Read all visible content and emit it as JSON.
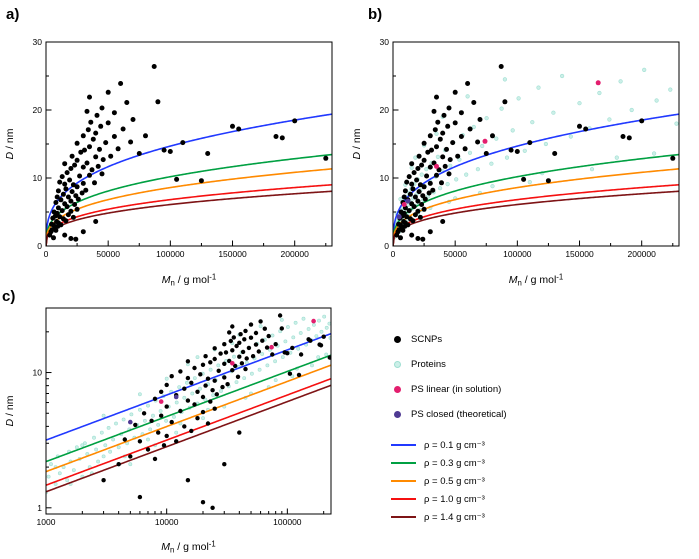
{
  "panels": {
    "a": {
      "label": "a)"
    },
    "b": {
      "label": "b)"
    },
    "c": {
      "label": "c)"
    }
  },
  "legend": {
    "point_items": [
      {
        "label": "SCNPs",
        "color": "#000000"
      },
      {
        "label": "Proteins",
        "color": "#ccefe8",
        "stroke": "#9fdfd2"
      },
      {
        "label": "PS  linear (in solution)",
        "color": "#e31e6e"
      },
      {
        "label": "PS closed (theoretical)",
        "color": "#4f3a93"
      }
    ]
  },
  "curve_constant": 0.0031723,
  "curve_formula": "D[nm] = (6*Mn/(pi*rho*NA))^(1/3), Mn in g/mol, rho in g/cm3",
  "rho_lines": [
    {
      "rho": 0.1,
      "color": "#2139ff",
      "label": "ρ = 0.1 g cm⁻³"
    },
    {
      "rho": 0.3,
      "color": "#00a042",
      "label": "ρ = 0.3 g cm⁻³"
    },
    {
      "rho": 0.5,
      "color": "#ff8a00",
      "label": "ρ = 0.5 g cm⁻³"
    },
    {
      "rho": 1.0,
      "color": "#f51010",
      "label": "ρ = 1.0 g cm⁻³"
    },
    {
      "rho": 1.4,
      "color": "#7e1416",
      "label": "ρ = 1.4 g cm⁻³"
    }
  ],
  "datasets": {
    "scnps": [
      [
        3000,
        1.6
      ],
      [
        4000,
        2.1
      ],
      [
        4500,
        3.2
      ],
      [
        5000,
        2.4
      ],
      [
        5500,
        4.1
      ],
      [
        6000,
        1.2
      ],
      [
        6000,
        3.1
      ],
      [
        6500,
        5.0
      ],
      [
        7000,
        2.7
      ],
      [
        7500,
        4.4
      ],
      [
        8000,
        2.3
      ],
      [
        8000,
        6.4
      ],
      [
        8500,
        3.6
      ],
      [
        9000,
        4.8
      ],
      [
        9000,
        7.2
      ],
      [
        9500,
        2.9
      ],
      [
        10000,
        3.4
      ],
      [
        10000,
        5.6
      ],
      [
        10000,
        8.1
      ],
      [
        11000,
        4.3
      ],
      [
        11000,
        9.4
      ],
      [
        12000,
        3.1
      ],
      [
        12000,
        6.8
      ],
      [
        13000,
        5.2
      ],
      [
        13000,
        10.2
      ],
      [
        14000,
        4.0
      ],
      [
        14000,
        7.6
      ],
      [
        15000,
        1.6
      ],
      [
        15000,
        6.2
      ],
      [
        15000,
        9.1
      ],
      [
        15000,
        12.1
      ],
      [
        16000,
        3.7
      ],
      [
        16000,
        8.4
      ],
      [
        17000,
        5.8
      ],
      [
        17000,
        10.8
      ],
      [
        18000,
        4.6
      ],
      [
        18000,
        7.2
      ],
      [
        19000,
        9.7
      ],
      [
        20000,
        1.1
      ],
      [
        20000,
        5.1
      ],
      [
        20000,
        6.6
      ],
      [
        20000,
        11.4
      ],
      [
        21000,
        8.0
      ],
      [
        21000,
        13.2
      ],
      [
        22000,
        4.2
      ],
      [
        22000,
        9.0
      ],
      [
        23000,
        6.1
      ],
      [
        23000,
        11.9
      ],
      [
        24000,
        1.0
      ],
      [
        24000,
        7.4
      ],
      [
        25000,
        5.4
      ],
      [
        25000,
        8.7
      ],
      [
        25000,
        12.6
      ],
      [
        25000,
        15.1
      ],
      [
        26000,
        6.9
      ],
      [
        27000,
        10.3
      ],
      [
        28000,
        13.8
      ],
      [
        29000,
        7.8
      ],
      [
        30000,
        2.1
      ],
      [
        30000,
        9.2
      ],
      [
        30000,
        11.6
      ],
      [
        30000,
        16.2
      ],
      [
        31000,
        14.1
      ],
      [
        32000,
        8.2
      ],
      [
        33000,
        12.2
      ],
      [
        33000,
        19.8
      ],
      [
        34000,
        17.1
      ],
      [
        35000,
        10.4
      ],
      [
        35000,
        14.6
      ],
      [
        35000,
        21.9
      ],
      [
        36000,
        18.2
      ],
      [
        37000,
        11.2
      ],
      [
        38000,
        15.7
      ],
      [
        39000,
        9.3
      ],
      [
        40000,
        3.6
      ],
      [
        40000,
        13.1
      ],
      [
        40000,
        16.6
      ],
      [
        41000,
        19.2
      ],
      [
        42000,
        11.7
      ],
      [
        43000,
        14.2
      ],
      [
        44000,
        17.6
      ],
      [
        45000,
        10.6
      ],
      [
        45000,
        20.3
      ],
      [
        46000,
        12.7
      ],
      [
        48000,
        15.2
      ],
      [
        50000,
        18.1
      ],
      [
        50000,
        22.6
      ],
      [
        52000,
        13.2
      ],
      [
        55000,
        16.1
      ],
      [
        55000,
        19.6
      ],
      [
        58000,
        14.3
      ],
      [
        60000,
        23.9
      ],
      [
        62000,
        17.2
      ],
      [
        65000,
        21.1
      ],
      [
        68000,
        15.3
      ],
      [
        70000,
        18.6
      ],
      [
        75000,
        13.6
      ],
      [
        80000,
        16.2
      ],
      [
        87000,
        26.4
      ],
      [
        90000,
        21.2
      ],
      [
        95000,
        14.1
      ],
      [
        100000,
        13.9
      ],
      [
        105000,
        9.8
      ],
      [
        110000,
        15.2
      ],
      [
        125000,
        9.6
      ],
      [
        130000,
        13.6
      ],
      [
        150000,
        17.6
      ],
      [
        155000,
        17.2
      ],
      [
        185000,
        16.1
      ],
      [
        190000,
        15.9
      ],
      [
        200000,
        18.4
      ],
      [
        225000,
        12.9
      ]
    ],
    "proteins": [
      [
        1000,
        1.3
      ],
      [
        1050,
        1.7
      ],
      [
        1100,
        2.1
      ],
      [
        1200,
        1.5
      ],
      [
        1250,
        2.4
      ],
      [
        1300,
        1.8
      ],
      [
        1400,
        2.0
      ],
      [
        1500,
        1.6
      ],
      [
        1550,
        2.6
      ],
      [
        1600,
        2.2
      ],
      [
        1700,
        1.9
      ],
      [
        1800,
        2.8
      ],
      [
        1900,
        2.3
      ],
      [
        2000,
        1.7
      ],
      [
        2100,
        3.0
      ],
      [
        2200,
        2.5
      ],
      [
        2300,
        2.0
      ],
      [
        2500,
        3.3
      ],
      [
        2600,
        2.7
      ],
      [
        2700,
        2.2
      ],
      [
        2900,
        3.6
      ],
      [
        3000,
        2.4
      ],
      [
        3100,
        2.9
      ],
      [
        3300,
        3.9
      ],
      [
        3400,
        2.6
      ],
      [
        3600,
        3.2
      ],
      [
        3800,
        4.2
      ],
      [
        4000,
        2.8
      ],
      [
        4200,
        3.5
      ],
      [
        4400,
        4.5
      ],
      [
        4700,
        3.0
      ],
      [
        4900,
        3.8
      ],
      [
        5100,
        4.9
      ],
      [
        5400,
        3.3
      ],
      [
        5700,
        4.1
      ],
      [
        6000,
        5.3
      ],
      [
        6300,
        3.5
      ],
      [
        6600,
        4.4
      ],
      [
        7000,
        5.7
      ],
      [
        7300,
        3.8
      ],
      [
        7700,
        4.8
      ],
      [
        8100,
        6.2
      ],
      [
        8500,
        4.1
      ],
      [
        8900,
        5.2
      ],
      [
        9400,
        6.7
      ],
      [
        9900,
        4.4
      ],
      [
        10400,
        5.6
      ],
      [
        10900,
        7.2
      ],
      [
        11500,
        4.7
      ],
      [
        12100,
        6.0
      ],
      [
        12700,
        7.8
      ],
      [
        13300,
        5.1
      ],
      [
        14000,
        6.5
      ],
      [
        14700,
        8.4
      ],
      [
        15500,
        5.5
      ],
      [
        16300,
        7.0
      ],
      [
        17100,
        9.1
      ],
      [
        18000,
        5.9
      ],
      [
        18900,
        7.6
      ],
      [
        19900,
        9.8
      ],
      [
        20900,
        6.3
      ],
      [
        22000,
        8.2
      ],
      [
        23100,
        10.5
      ],
      [
        24300,
        6.8
      ],
      [
        25500,
        8.8
      ],
      [
        26800,
        11.3
      ],
      [
        28200,
        7.3
      ],
      [
        29600,
        9.5
      ],
      [
        31100,
        12.2
      ],
      [
        32700,
        7.9
      ],
      [
        34400,
        10.2
      ],
      [
        36100,
        13.1
      ],
      [
        37900,
        8.5
      ],
      [
        39800,
        11.0
      ],
      [
        41800,
        14.1
      ],
      [
        43900,
        9.1
      ],
      [
        46100,
        11.8
      ],
      [
        48400,
        15.2
      ],
      [
        50800,
        9.8
      ],
      [
        53400,
        12.7
      ],
      [
        56100,
        16.3
      ],
      [
        58900,
        10.5
      ],
      [
        61900,
        13.7
      ],
      [
        65000,
        17.5
      ],
      [
        68300,
        11.3
      ],
      [
        71700,
        14.7
      ],
      [
        75300,
        18.8
      ],
      [
        79100,
        12.1
      ],
      [
        83100,
        15.8
      ],
      [
        87300,
        20.2
      ],
      [
        91700,
        13.0
      ],
      [
        96300,
        17.0
      ],
      [
        101000,
        21.7
      ],
      [
        106000,
        14.0
      ],
      [
        112000,
        18.2
      ],
      [
        117000,
        23.3
      ],
      [
        123000,
        15.0
      ],
      [
        129000,
        19.6
      ],
      [
        136000,
        25.0
      ],
      [
        143000,
        16.1
      ],
      [
        150000,
        21.0
      ],
      [
        158000,
        17.3
      ],
      [
        166000,
        22.5
      ],
      [
        174000,
        18.6
      ],
      [
        183000,
        24.2
      ],
      [
        192000,
        20.0
      ],
      [
        202000,
        25.9
      ],
      [
        212000,
        21.4
      ],
      [
        223000,
        23.0
      ],
      [
        228000,
        18.0
      ],
      [
        5000,
        2.1
      ],
      [
        8000,
        2.9
      ],
      [
        12000,
        3.6
      ],
      [
        20000,
        4.6
      ],
      [
        30000,
        5.6
      ],
      [
        50000,
        7.0
      ],
      [
        80000,
        8.8
      ],
      [
        120000,
        10.7
      ],
      [
        180000,
        13.0
      ],
      [
        2000,
        2.9
      ],
      [
        3000,
        4.8
      ],
      [
        6000,
        6.9
      ],
      [
        15000,
        11.5
      ],
      [
        25000,
        14.8
      ],
      [
        40000,
        19.0
      ],
      [
        60000,
        22.0
      ],
      [
        90000,
        24.5
      ],
      [
        10000,
        9.0
      ],
      [
        18000,
        13.0
      ],
      [
        35000,
        16.5
      ],
      [
        1200,
        2.0
      ],
      [
        1600,
        1.5
      ],
      [
        2400,
        1.8
      ],
      [
        4500,
        2.4
      ],
      [
        7000,
        3.2
      ],
      [
        13000,
        4.2
      ],
      [
        22000,
        5.3
      ],
      [
        45000,
        6.5
      ],
      [
        70000,
        7.8
      ],
      [
        110000,
        9.4
      ],
      [
        160000,
        11.3
      ],
      [
        210000,
        13.6
      ]
    ],
    "ps_linear": [
      [
        9000,
        6.1
      ],
      [
        35000,
        11.7
      ],
      [
        74000,
        15.4
      ],
      [
        165000,
        24.0
      ]
    ],
    "ps_closed": [
      [
        5000,
        4.3
      ],
      [
        12000,
        6.6
      ]
    ]
  },
  "chart_data": [
    {
      "id": "a",
      "type": "scatter",
      "xscale": "linear",
      "yscale": "linear",
      "xlim": [
        0,
        230000
      ],
      "ylim": [
        0,
        30
      ],
      "xticks": [
        0,
        50000,
        100000,
        150000,
        200000
      ],
      "xtick_labels": [
        "0",
        "50000",
        "100000",
        "150000",
        "200000"
      ],
      "xminor": [
        25000,
        75000,
        125000,
        175000,
        225000
      ],
      "yticks": [
        0,
        10,
        20,
        30
      ],
      "ytick_labels": [
        "0",
        "10",
        "20",
        "30"
      ],
      "yminor": [
        5,
        15,
        25
      ],
      "xlabel": [
        {
          "t": "M",
          "i": 1
        },
        {
          "t": "n",
          "sub": 1
        },
        {
          "t": " / g mol"
        },
        {
          "t": "-1",
          "sup": 1
        }
      ],
      "ylabel": [
        {
          "t": "D",
          "i": 1
        },
        {
          "t": " / nm"
        }
      ],
      "curves": true,
      "series": [
        {
          "name": "SCNPs",
          "dataset": "scnps",
          "color": "#000000",
          "r": 2.5,
          "z": 1
        }
      ]
    },
    {
      "id": "b",
      "type": "scatter",
      "xscale": "linear",
      "yscale": "linear",
      "xlim": [
        0,
        230000
      ],
      "ylim": [
        0,
        30
      ],
      "xticks": [
        0,
        50000,
        100000,
        150000,
        200000
      ],
      "xtick_labels": [
        "0",
        "50000",
        "100000",
        "150000",
        "200000"
      ],
      "xminor": [
        25000,
        75000,
        125000,
        175000,
        225000
      ],
      "yticks": [
        0,
        10,
        20,
        30
      ],
      "ytick_labels": [
        "0",
        "10",
        "20",
        "30"
      ],
      "yminor": [
        5,
        15,
        25
      ],
      "xlabel": [
        {
          "t": "M",
          "i": 1
        },
        {
          "t": "n",
          "sub": 1
        },
        {
          "t": " / g mol"
        },
        {
          "t": "-1",
          "sup": 1
        }
      ],
      "ylabel": [
        {
          "t": "D",
          "i": 1
        },
        {
          "t": " / nm"
        }
      ],
      "curves": true,
      "series": [
        {
          "name": "Proteins",
          "dataset": "proteins",
          "color": "#ccefe8",
          "stroke": "#9fdfd2",
          "r": 1.8,
          "z": 0
        },
        {
          "name": "SCNPs",
          "dataset": "scnps",
          "color": "#000000",
          "r": 2.5,
          "z": 1
        },
        {
          "name": "PS linear (in solution)",
          "dataset": "ps_linear",
          "color": "#e31e6e",
          "r": 2.5,
          "z": 1
        },
        {
          "name": "PS closed (theoretical)",
          "dataset": "ps_closed",
          "color": "#4f3a93",
          "r": 2.5,
          "z": 1
        }
      ]
    },
    {
      "id": "c",
      "type": "scatter",
      "xscale": "log",
      "yscale": "log",
      "xlim": [
        1000,
        230000
      ],
      "ylim": [
        0.9,
        30
      ],
      "xticks": [
        1000,
        10000,
        100000
      ],
      "xtick_labels": [
        "1000",
        "10000",
        "100000"
      ],
      "yticks": [
        1,
        10
      ],
      "ytick_labels": [
        "1",
        "10"
      ],
      "xlabel": [
        {
          "t": "M",
          "i": 1
        },
        {
          "t": "n",
          "sub": 1
        },
        {
          "t": " / g mol"
        },
        {
          "t": "-1",
          "sup": 1
        }
      ],
      "ylabel": [
        {
          "t": "D",
          "i": 1
        },
        {
          "t": " / nm"
        }
      ],
      "curves": true,
      "series": [
        {
          "name": "Proteins",
          "dataset": "proteins",
          "color": "#ccefe8",
          "stroke": "#9fdfd2",
          "r": 1.6,
          "z": 0
        },
        {
          "name": "SCNPs",
          "dataset": "scnps",
          "color": "#000000",
          "r": 2.2,
          "z": 1
        },
        {
          "name": "PS linear (in solution)",
          "dataset": "ps_linear",
          "color": "#e31e6e",
          "r": 2.3,
          "z": 1
        },
        {
          "name": "PS closed (theoretical)",
          "dataset": "ps_closed",
          "color": "#4f3a93",
          "r": 2.3,
          "z": 1
        }
      ]
    }
  ]
}
